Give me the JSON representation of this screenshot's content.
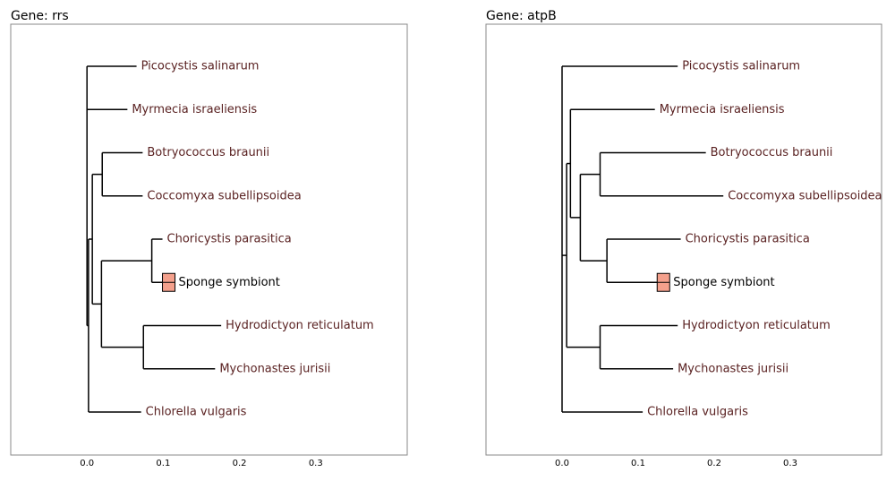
{
  "chart_data": [
    {
      "type": "tree",
      "title": "Gene: rrs",
      "xlim": [
        -0.1,
        0.42
      ],
      "xticks": [
        {
          "value": 0,
          "label": "0.0"
        },
        {
          "value": 0.1,
          "label": "0.1"
        },
        {
          "value": 0.2,
          "label": "0.2"
        },
        {
          "value": 0.3,
          "label": "0.3"
        }
      ],
      "label_color": "#5a2222",
      "highlight_color": "#f4a08c",
      "nodes": [
        {
          "x": 0,
          "children": [
            1,
            2,
            3
          ]
        },
        {
          "label": "Picocystis salinarum",
          "x": 0.065
        },
        {
          "label": "Myrmecia israeliensis",
          "x": 0.053
        },
        {
          "x": 0.002,
          "children": [
            4,
            14
          ]
        },
        {
          "x": 0.007,
          "children": [
            5,
            8
          ]
        },
        {
          "x": 0.02,
          "children": [
            6,
            7
          ]
        },
        {
          "label": "Botryococcus braunii",
          "x": 0.073
        },
        {
          "label": "Coccomyxa subellipsoidea",
          "x": 0.073
        },
        {
          "x": 0.019,
          "children": [
            9,
            12
          ]
        },
        {
          "x": 0.085,
          "children": [
            10,
            11
          ]
        },
        {
          "label": "Choricystis parasitica",
          "x": 0.099
        },
        {
          "label": "Sponge symbiont",
          "x": 0.099,
          "highlight": true
        },
        {
          "x": 0.074,
          "children": [
            13,
            15
          ]
        },
        {
          "label": "Hydrodictyon reticulatum",
          "x": 0.176
        },
        {
          "label": "Chlorella vulgaris",
          "x": 0.071
        },
        {
          "label": "Mychonastes jurisii",
          "x": 0.168
        }
      ]
    },
    {
      "type": "tree",
      "title": "Gene: atpB",
      "xlim": [
        -0.1,
        0.42
      ],
      "xticks": [
        {
          "value": 0,
          "label": "0.0"
        },
        {
          "value": 0.1,
          "label": "0.1"
        },
        {
          "value": 0.2,
          "label": "0.2"
        },
        {
          "value": 0.3,
          "label": "0.3"
        }
      ],
      "label_color": "#5a2222",
      "highlight_color": "#f4a08c",
      "nodes": [
        {
          "x": 0,
          "children": [
            1,
            2,
            14
          ]
        },
        {
          "label": "Picocystis salinarum",
          "x": 0.152
        },
        {
          "x": 0.006,
          "children": [
            3,
            11
          ]
        },
        {
          "x": 0.011,
          "children": [
            4,
            5
          ]
        },
        {
          "label": "Myrmecia israeliensis",
          "x": 0.122
        },
        {
          "x": 0.024,
          "children": [
            6,
            9
          ]
        },
        {
          "x": 0.05,
          "children": [
            7,
            8
          ]
        },
        {
          "label": "Botryococcus braunii",
          "x": 0.189
        },
        {
          "label": "Coccomyxa subellipsoidea",
          "x": 0.212
        },
        {
          "x": 0.059,
          "children": [
            10,
            15
          ]
        },
        {
          "label": "Choricystis parasitica",
          "x": 0.156
        },
        {
          "x": 0.05,
          "children": [
            12,
            13
          ]
        },
        {
          "label": "Hydrodictyon reticulatum",
          "x": 0.152
        },
        {
          "label": "Mychonastes jurisii",
          "x": 0.146
        },
        {
          "label": "Chlorella vulgaris",
          "x": 0.106
        },
        {
          "label": "Sponge symbiont",
          "x": 0.125,
          "highlight": true
        }
      ]
    }
  ]
}
